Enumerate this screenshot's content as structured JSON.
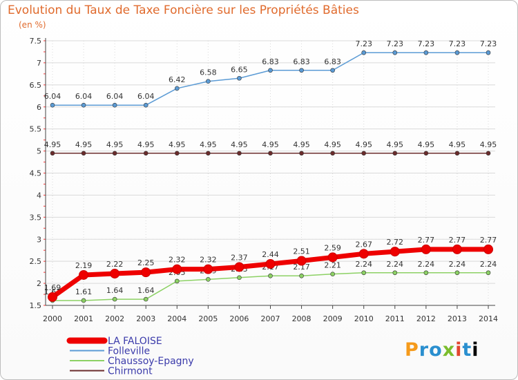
{
  "title": "Evolution du Taux de Taxe Foncière sur les Propriétés Bâties",
  "unit": "(en %)",
  "logo": [
    "P",
    "r",
    "o",
    "x",
    "i",
    "t",
    "i"
  ],
  "colors": {
    "text": "#e06a2c",
    "grid": "#d9d9d9",
    "axis": "#444444",
    "tick_red": "#ff3333"
  },
  "chart_data": {
    "type": "line",
    "title": "Evolution du Taux de Taxe Foncière sur les Propriétés Bâties",
    "ylabel": "(en %)",
    "xlabel": "",
    "ylim": [
      1.5,
      7.5
    ],
    "yticks": [
      "1.5",
      "2",
      "2.5",
      "3",
      "3.5",
      "4",
      "4.5",
      "5",
      "5.5",
      "6",
      "6.5",
      "7",
      "7.5"
    ],
    "x": [
      "2000",
      "2001",
      "2002",
      "2003",
      "2004",
      "2005",
      "2006",
      "2007",
      "2008",
      "2009",
      "2010",
      "2011",
      "2012",
      "2013",
      "2014"
    ],
    "legend_position": "bottom-left",
    "grid": true,
    "series": [
      {
        "name": "LA FALOISE",
        "color": "#ee0000",
        "values": [
          1.69,
          2.19,
          2.22,
          2.25,
          2.32,
          2.32,
          2.37,
          2.44,
          2.51,
          2.59,
          2.67,
          2.72,
          2.77,
          2.77,
          2.77
        ],
        "labels": [
          "1.69",
          "2.19",
          "2.22",
          "2.25",
          "2.32",
          "2.32",
          "2.37",
          "2.44",
          "2.51",
          "2.59",
          "2.67",
          "2.72",
          "2.77",
          "2.77",
          "2.77"
        ]
      },
      {
        "name": "Folleville",
        "color": "#5b9bd5",
        "values": [
          6.04,
          6.04,
          6.04,
          6.04,
          6.42,
          6.58,
          6.65,
          6.83,
          6.83,
          6.83,
          7.23,
          7.23,
          7.23,
          7.23,
          7.23
        ],
        "labels": [
          "6.04",
          "6.04",
          "6.04",
          "6.04",
          "6.42",
          "6.58",
          "6.65",
          "6.83",
          "6.83",
          "6.83",
          "7.23",
          "7.23",
          "7.23",
          "7.23",
          "7.23"
        ]
      },
      {
        "name": "Chaussoy-Epagny",
        "color": "#8cd164",
        "values": [
          1.61,
          1.61,
          1.64,
          1.64,
          2.05,
          2.09,
          2.13,
          2.17,
          2.17,
          2.21,
          2.24,
          2.24,
          2.24,
          2.24,
          2.24
        ],
        "labels": [
          "1.61",
          "1.61",
          "1.64",
          "1.64",
          "2.05",
          "2.09",
          "2.13",
          "2.17",
          "2.17",
          "2.21",
          "2.24",
          "2.24",
          "2.24",
          "2.24",
          "2.24"
        ]
      },
      {
        "name": "Chirmont",
        "color": "#6b2c2c",
        "values": [
          4.95,
          4.95,
          4.95,
          4.95,
          4.95,
          4.95,
          4.95,
          4.95,
          4.95,
          4.95,
          4.95,
          4.95,
          4.95,
          4.95,
          4.95
        ],
        "labels": [
          "4.95",
          "4.95",
          "4.95",
          "4.95",
          "4.95",
          "4.95",
          "4.95",
          "4.95",
          "4.95",
          "4.95",
          "4.95",
          "4.95",
          "4.95",
          "4.95",
          "4.95"
        ]
      }
    ]
  }
}
